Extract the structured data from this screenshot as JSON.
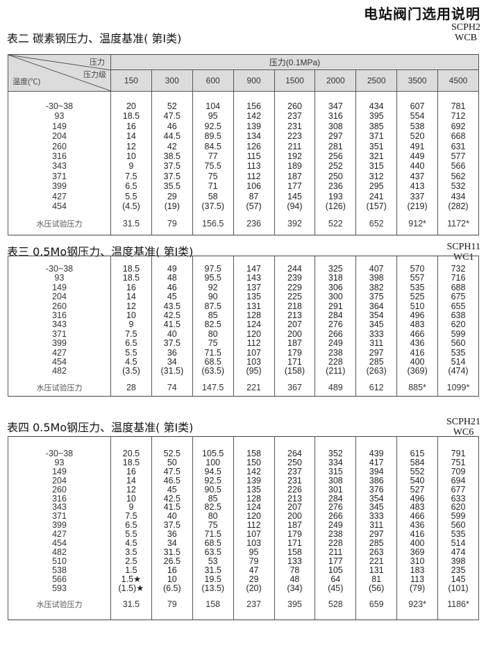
{
  "page_title": "电站阀门选用说明",
  "header": {
    "corner_pressure": "压力",
    "corner_class": "压力级",
    "corner_temp": "温度(℃)",
    "unit_label": "压力(0.1MPa)",
    "classes": [
      "150",
      "300",
      "600",
      "900",
      "1500",
      "2000",
      "2500",
      "3500",
      "4500"
    ]
  },
  "tables": [
    {
      "title": "表二 碳素钢压力、温度基准( 第Ⅰ类)",
      "codes": [
        "SCPH2",
        "WCB"
      ],
      "rows": [
        {
          "temp": "-30~38",
          "values": [
            "20",
            "52",
            "104",
            "156",
            "260",
            "347",
            "434",
            "607",
            "781"
          ]
        },
        {
          "temp": "93",
          "values": [
            "18.5",
            "47.5",
            "95",
            "142",
            "237",
            "316",
            "395",
            "554",
            "712"
          ]
        },
        {
          "temp": "149",
          "values": [
            "16",
            "46",
            "92.5",
            "139",
            "231",
            "308",
            "385",
            "538",
            "692"
          ]
        },
        {
          "temp": "204",
          "values": [
            "14",
            "44.5",
            "89.5",
            "134",
            "223",
            "297",
            "371",
            "520",
            "668"
          ]
        },
        {
          "temp": "260",
          "values": [
            "12",
            "42",
            "84.5",
            "126",
            "211",
            "281",
            "351",
            "491",
            "631"
          ]
        },
        {
          "temp": "316",
          "values": [
            "10",
            "38.5",
            "77",
            "115",
            "192",
            "256",
            "321",
            "449",
            "577"
          ]
        },
        {
          "temp": "343",
          "values": [
            "9",
            "37.5",
            "75.5",
            "113",
            "189",
            "252",
            "315",
            "440",
            "566"
          ]
        },
        {
          "temp": "371",
          "values": [
            "7.5",
            "37.5",
            "75",
            "112",
            "187",
            "250",
            "312",
            "437",
            "562"
          ]
        },
        {
          "temp": "399",
          "values": [
            "6.5",
            "35.5",
            "71",
            "106",
            "177",
            "236",
            "295",
            "413",
            "532"
          ]
        },
        {
          "temp": "427",
          "values": [
            "5.5",
            "29",
            "58",
            "87",
            "145",
            "193",
            "241",
            "337",
            "434"
          ]
        },
        {
          "temp": "454",
          "values": [
            "(4.5)",
            "(19)",
            "(37.5)",
            "(57)",
            "(94)",
            "(126)",
            "(157)",
            "(219)",
            "(282)"
          ]
        }
      ],
      "hydro": {
        "label": "水压试验压力",
        "values": [
          "31.5",
          "79",
          "156.5",
          "236",
          "392",
          "522",
          "652",
          "912*",
          "1172*"
        ]
      }
    },
    {
      "title": "表三 0.5Mo钢压力、温度基准( 第Ⅰ类)",
      "codes": [
        "SCPH11",
        "WC1"
      ],
      "rows": [
        {
          "temp": "-30~38",
          "values": [
            "18.5",
            "49",
            "97.5",
            "147",
            "244",
            "325",
            "407",
            "570",
            "732"
          ]
        },
        {
          "temp": "93",
          "values": [
            "18.5",
            "48",
            "95.5",
            "143",
            "239",
            "318",
            "398",
            "557",
            "716"
          ]
        },
        {
          "temp": "149",
          "values": [
            "16",
            "46",
            "92",
            "137",
            "229",
            "306",
            "382",
            "535",
            "688"
          ]
        },
        {
          "temp": "204",
          "values": [
            "14",
            "45",
            "90",
            "135",
            "225",
            "300",
            "375",
            "525",
            "675"
          ]
        },
        {
          "temp": "260",
          "values": [
            "12",
            "43.5",
            "87.5",
            "131",
            "218",
            "291",
            "364",
            "510",
            "655"
          ]
        },
        {
          "temp": "316",
          "values": [
            "10",
            "42.5",
            "85",
            "128",
            "213",
            "284",
            "354",
            "496",
            "638"
          ]
        },
        {
          "temp": "343",
          "values": [
            "9",
            "41.5",
            "82.5",
            "124",
            "207",
            "276",
            "345",
            "483",
            "620"
          ]
        },
        {
          "temp": "371",
          "values": [
            "7.5",
            "40",
            "80",
            "120",
            "200",
            "266",
            "333",
            "466",
            "599"
          ]
        },
        {
          "temp": "399",
          "values": [
            "6.5",
            "37.5",
            "75",
            "112",
            "187",
            "249",
            "311",
            "436",
            "560"
          ]
        },
        {
          "temp": "427",
          "values": [
            "5.5",
            "36",
            "71.5",
            "107",
            "179",
            "238",
            "297",
            "416",
            "535"
          ]
        },
        {
          "temp": "454",
          "values": [
            "4.5",
            "34",
            "68.5",
            "103",
            "171",
            "228",
            "285",
            "400",
            "514"
          ]
        },
        {
          "temp": "482",
          "values": [
            "(3.5)",
            "(31.5)",
            "(63.5)",
            "(95)",
            "(158)",
            "(211)",
            "(263)",
            "(369)",
            "(474)"
          ]
        }
      ],
      "hydro": {
        "label": "水压试验压力",
        "values": [
          "28",
          "74",
          "147.5",
          "221",
          "367",
          "489",
          "612",
          "885*",
          "1099*"
        ]
      }
    },
    {
      "title": "表四 0.5Mo钢压力、温度基准( 第Ⅰ类)",
      "codes": [
        "SCPH21",
        "WC6"
      ],
      "rows": [
        {
          "temp": "-30~38",
          "values": [
            "20.5",
            "52.5",
            "105.5",
            "158",
            "264",
            "352",
            "439",
            "615",
            "791"
          ]
        },
        {
          "temp": "93",
          "values": [
            "18.5",
            "50",
            "100",
            "150",
            "250",
            "334",
            "417",
            "584",
            "751"
          ]
        },
        {
          "temp": "149",
          "values": [
            "16",
            "47.5",
            "94.5",
            "142",
            "237",
            "315",
            "394",
            "552",
            "709"
          ]
        },
        {
          "temp": "204",
          "values": [
            "14",
            "46.5",
            "92.5",
            "139",
            "231",
            "308",
            "386",
            "540",
            "694"
          ]
        },
        {
          "temp": "260",
          "values": [
            "12",
            "45",
            "90.5",
            "135",
            "226",
            "301",
            "376",
            "527",
            "677"
          ]
        },
        {
          "temp": "316",
          "values": [
            "10",
            "42.5",
            "85",
            "128",
            "213",
            "284",
            "354",
            "496",
            "633"
          ]
        },
        {
          "temp": "343",
          "values": [
            "9",
            "41.5",
            "82.5",
            "124",
            "207",
            "276",
            "345",
            "483",
            "620"
          ]
        },
        {
          "temp": "371",
          "values": [
            "7.5",
            "40",
            "80",
            "120",
            "200",
            "266",
            "333",
            "466",
            "599"
          ]
        },
        {
          "temp": "399",
          "values": [
            "6.5",
            "37.5",
            "75",
            "112",
            "187",
            "249",
            "311",
            "436",
            "560"
          ]
        },
        {
          "temp": "427",
          "values": [
            "5.5",
            "36",
            "71.5",
            "107",
            "179",
            "238",
            "297",
            "416",
            "535"
          ]
        },
        {
          "temp": "454",
          "values": [
            "4.5",
            "34",
            "68.5",
            "103",
            "171",
            "228",
            "285",
            "400",
            "514"
          ]
        },
        {
          "temp": "482",
          "values": [
            "3.5",
            "31.5",
            "63.5",
            "95",
            "158",
            "211",
            "263",
            "369",
            "474"
          ]
        },
        {
          "temp": "510",
          "values": [
            "2.5",
            "26.5",
            "53",
            "79",
            "133",
            "177",
            "221",
            "310",
            "398"
          ]
        },
        {
          "temp": "538",
          "values": [
            "1.5",
            "16",
            "31.5",
            "47",
            "78",
            "105",
            "131",
            "183",
            "235"
          ]
        },
        {
          "temp": "566",
          "values": [
            "1.5★",
            "10",
            "19.5",
            "29",
            "48",
            "64",
            "81",
            "113",
            "145"
          ]
        },
        {
          "temp": "593",
          "values": [
            "(1.5)★",
            "(6.5)",
            "(13.5)",
            "(20)",
            "(34)",
            "(45)",
            "(56)",
            "(79)",
            "(101)"
          ]
        }
      ],
      "hydro": {
        "label": "水压试验压力",
        "values": [
          "31.5",
          "79",
          "158",
          "237",
          "395",
          "528",
          "659",
          "923*",
          "1186*"
        ]
      }
    }
  ]
}
